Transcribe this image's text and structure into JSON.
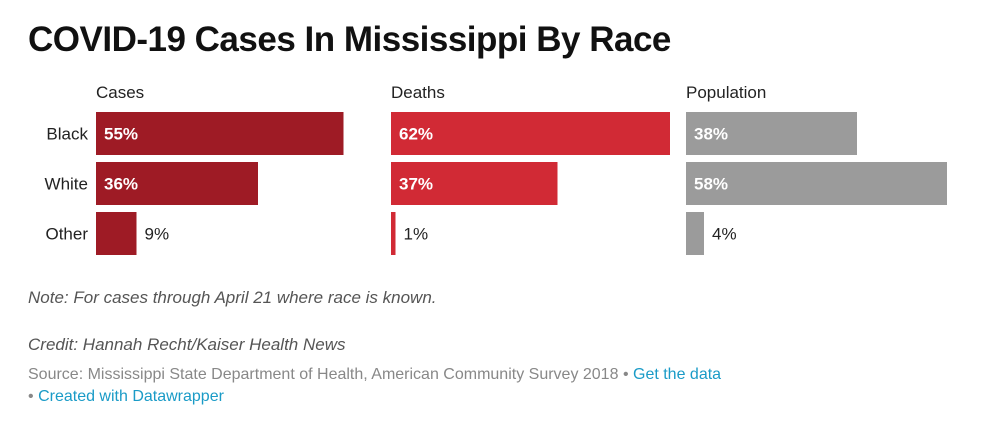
{
  "header": {
    "title": "COVID-19 Cases In Mississippi By Race"
  },
  "chart_data": {
    "type": "bar",
    "orientation": "horizontal",
    "layout": "small-multiples",
    "categories": [
      "Black",
      "White",
      "Other"
    ],
    "series": [
      {
        "name": "Cases",
        "values": [
          55,
          36,
          9
        ],
        "color": "#9e1b25"
      },
      {
        "name": "Deaths",
        "values": [
          62,
          37,
          1
        ],
        "color": "#d12a35"
      },
      {
        "name": "Population",
        "values": [
          38,
          58,
          4
        ],
        "color": "#9b9b9b"
      }
    ],
    "value_suffix": "%",
    "xlim": [
      0,
      62
    ],
    "grid": false,
    "legend": "none"
  },
  "footer": {
    "note": "Note: For cases through April 21 where race is known.",
    "credit": "Credit: Hannah Recht/Kaiser Health News",
    "source": "Source: Mississippi State Department of Health, American Community Survey 2018",
    "separator": "•",
    "get_data_link": "Get the data",
    "created_with_link": "Created with Datawrapper"
  }
}
